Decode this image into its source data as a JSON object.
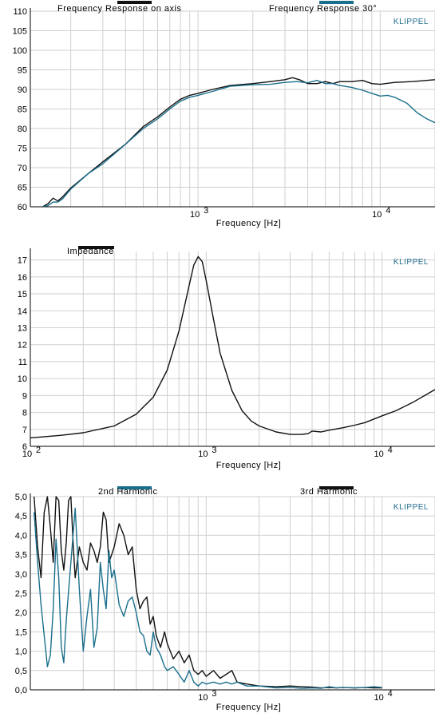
{
  "brand": "KLIPPEL",
  "colors": {
    "black": "#111111",
    "teal": "#1a6f8c",
    "grid": "#cfcfcf",
    "brand": "#1f6d8f"
  },
  "chart_data": [
    {
      "type": "line",
      "id": "freq",
      "xlabel": "Frequency  [Hz]",
      "xscale": "log",
      "xlim": [
        120,
        20000
      ],
      "ylim": [
        60,
        110
      ],
      "yticks": [
        "60",
        "65",
        "70",
        "75",
        "80",
        "85",
        "90",
        "95",
        "100",
        "105",
        "110"
      ],
      "xticks": [
        {
          "value": 1000,
          "base": "10",
          "exp": "3"
        },
        {
          "value": 10000,
          "base": "10",
          "exp": "4"
        }
      ],
      "grid": true,
      "legend": [
        {
          "name": "Frequency Response on axis",
          "color": "#111111"
        },
        {
          "name": "Frequency Response 30°",
          "color": "#1a6f8c"
        }
      ],
      "series": [
        {
          "name": "Frequency Response on axis",
          "color": "#111111",
          "x": [
            140,
            150,
            160,
            170,
            180,
            200,
            250,
            300,
            400,
            500,
            600,
            700,
            800,
            900,
            1000,
            1200,
            1500,
            2000,
            2500,
            3000,
            3300,
            3600,
            4000,
            4500,
            5000,
            5500,
            6000,
            7000,
            8000,
            9000,
            10000,
            12000,
            15000,
            20000
          ],
          "y": [
            60,
            60.8,
            62.2,
            61.5,
            62.5,
            64.8,
            68.5,
            71.5,
            76,
            80.5,
            83,
            85.5,
            87.5,
            88.5,
            89,
            90,
            91,
            91.5,
            92,
            92.5,
            93,
            92.5,
            91.5,
            91.5,
            92,
            91.5,
            92,
            92,
            92.3,
            91.5,
            91.3,
            91.8,
            92,
            92.5
          ]
        },
        {
          "name": "Frequency Response 30°",
          "color": "#1a6f8c",
          "x": [
            140,
            150,
            160,
            170,
            180,
            200,
            250,
            300,
            400,
            500,
            600,
            700,
            800,
            900,
            1000,
            1200,
            1500,
            2000,
            2500,
            3000,
            3500,
            4000,
            4500,
            5000,
            5500,
            6000,
            7000,
            8000,
            9000,
            10000,
            11000,
            12000,
            14000,
            16000,
            18000,
            20000
          ],
          "y": [
            60,
            60.3,
            61.2,
            61.2,
            62,
            64.5,
            68.5,
            71,
            76,
            80,
            82.5,
            85,
            87,
            88,
            88.5,
            89.5,
            90.8,
            91.2,
            91.3,
            91.8,
            92,
            91.7,
            92.3,
            91.5,
            91.5,
            91,
            90.5,
            89.8,
            89,
            88.3,
            88.5,
            88,
            86.5,
            84,
            82.5,
            81.5
          ]
        }
      ]
    },
    {
      "type": "line",
      "id": "imp",
      "xlabel": "Frequency  [Hz]",
      "xscale": "log",
      "xlim": [
        100,
        20000
      ],
      "ylim": [
        6,
        17.5
      ],
      "yticks": [
        "6",
        "7",
        "8",
        "9",
        "10",
        "11",
        "12",
        "13",
        "14",
        "15",
        "16",
        "17"
      ],
      "xticks": [
        {
          "value": 100,
          "base": "10",
          "exp": "2"
        },
        {
          "value": 1000,
          "base": "10",
          "exp": "3"
        },
        {
          "value": 10000,
          "base": "10",
          "exp": "4"
        }
      ],
      "grid": true,
      "legend": [
        {
          "name": "Impedance",
          "color": "#111111"
        }
      ],
      "series": [
        {
          "name": "Impedance",
          "color": "#111111",
          "x": [
            100,
            150,
            200,
            300,
            400,
            500,
            600,
            700,
            800,
            850,
            900,
            950,
            1000,
            1100,
            1200,
            1400,
            1600,
            1800,
            2000,
            2500,
            3000,
            3500,
            3800,
            4000,
            4500,
            5000,
            6000,
            7000,
            8000,
            10000,
            12000,
            15000,
            20000
          ],
          "y": [
            6.5,
            6.65,
            6.8,
            7.2,
            7.9,
            8.9,
            10.5,
            12.8,
            15.5,
            16.7,
            17.2,
            16.9,
            15.8,
            13.5,
            11.5,
            9.3,
            8.1,
            7.5,
            7.2,
            6.85,
            6.7,
            6.7,
            6.75,
            6.9,
            6.85,
            6.95,
            7.1,
            7.25,
            7.4,
            7.8,
            8.1,
            8.6,
            9.35
          ]
        }
      ]
    },
    {
      "type": "line",
      "id": "harm",
      "xlabel": "Frequency  [Hz]",
      "xscale": "log",
      "xlim": [
        100,
        20000
      ],
      "ylim": [
        0,
        5
      ],
      "yticks": [
        "0,0",
        "0,5",
        "1,0",
        "1,5",
        "2,0",
        "2,5",
        "3,0",
        "3,5",
        "4,0",
        "4,5",
        "5,0"
      ],
      "xticks": [
        {
          "value": 1000,
          "base": "10",
          "exp": "3"
        },
        {
          "value": 10000,
          "base": "10",
          "exp": "4"
        }
      ],
      "grid": true,
      "legend": [
        {
          "name": "2nd Harmonic",
          "color": "#1a6f8c"
        },
        {
          "name": "3rd Harmonic",
          "color": "#111111"
        }
      ],
      "series": [
        {
          "name": "3rd Harmonic",
          "color": "#111111",
          "x": [
            105,
            110,
            115,
            120,
            125,
            130,
            135,
            140,
            145,
            150,
            155,
            160,
            165,
            170,
            175,
            180,
            190,
            200,
            210,
            220,
            230,
            240,
            250,
            260,
            270,
            280,
            290,
            300,
            320,
            340,
            360,
            380,
            400,
            420,
            440,
            460,
            480,
            500,
            520,
            550,
            580,
            600,
            650,
            700,
            750,
            800,
            850,
            900,
            950,
            1000,
            1100,
            1200,
            1300,
            1400,
            1500,
            1700,
            2000,
            2500,
            3000,
            3500,
            4000,
            4500,
            5000,
            5500,
            6000,
            7000,
            8000,
            9000,
            10000
          ],
          "y": [
            5,
            3.7,
            2.9,
            4.6,
            5,
            4.2,
            3.3,
            5,
            4.9,
            3.6,
            3.1,
            3.8,
            4.9,
            5,
            3.8,
            2.9,
            3.7,
            3.3,
            3.1,
            3.8,
            3.6,
            3.3,
            3.7,
            4.6,
            4.4,
            3.3,
            3.5,
            3.7,
            4.3,
            4,
            3.5,
            3.7,
            2.6,
            2.1,
            2.3,
            2.4,
            1.7,
            1.9,
            1.4,
            1.1,
            1.5,
            1.2,
            0.8,
            1.0,
            0.7,
            0.9,
            0.5,
            0.4,
            0.5,
            0.35,
            0.5,
            0.3,
            0.4,
            0.5,
            0.2,
            0.15,
            0.1,
            0.08,
            0.1,
            0.08,
            0.07,
            0.05,
            0.06,
            0.05,
            0.06,
            0.05,
            0.06,
            0.05,
            0.05
          ]
        },
        {
          "name": "2nd Harmonic",
          "color": "#1a6f8c",
          "x": [
            105,
            110,
            115,
            120,
            125,
            130,
            135,
            140,
            145,
            150,
            155,
            160,
            170,
            180,
            190,
            200,
            210,
            220,
            230,
            240,
            250,
            260,
            270,
            280,
            290,
            300,
            320,
            340,
            360,
            380,
            400,
            420,
            440,
            460,
            480,
            500,
            520,
            550,
            580,
            600,
            650,
            700,
            750,
            800,
            850,
            900,
            950,
            1000,
            1100,
            1200,
            1300,
            1400,
            1500,
            1700,
            2000,
            2500,
            3000,
            3500,
            4000,
            4500,
            5000,
            5500,
            6000,
            7000,
            8000,
            9000,
            10000
          ],
          "y": [
            4.6,
            3.3,
            2.2,
            1.4,
            0.6,
            0.9,
            2.1,
            3.9,
            2.9,
            1.1,
            0.7,
            1.8,
            3.3,
            4.7,
            2.6,
            1.0,
            1.9,
            2.6,
            1.1,
            1.6,
            3.3,
            2.6,
            2.1,
            3.6,
            2.9,
            3.1,
            2.2,
            1.9,
            2.3,
            2.4,
            2.0,
            1.5,
            1.4,
            1.0,
            0.9,
            1.5,
            1.1,
            0.9,
            0.6,
            0.5,
            0.6,
            0.4,
            0.2,
            0.5,
            0.2,
            0.1,
            0.2,
            0.15,
            0.2,
            0.15,
            0.2,
            0.15,
            0.2,
            0.1,
            0.1,
            0.05,
            0.06,
            0.04,
            0.05,
            0.04,
            0.08,
            0.05,
            0.06,
            0.05,
            0.06,
            0.08,
            0.06
          ]
        }
      ]
    }
  ]
}
